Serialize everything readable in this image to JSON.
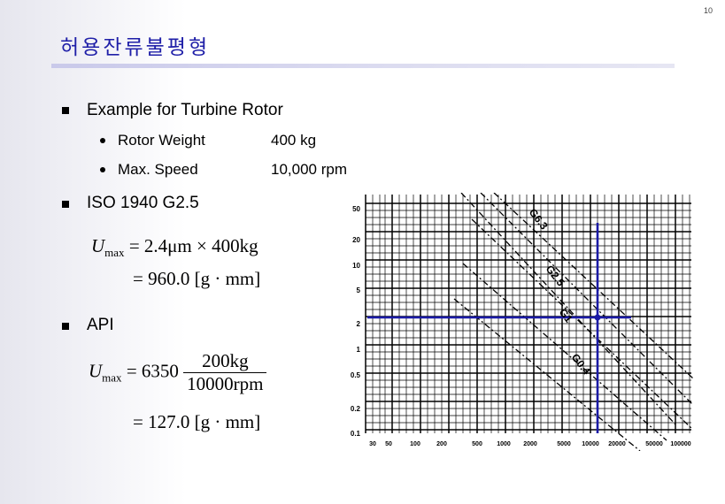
{
  "page_number": "10",
  "title": "허용잔류불평형",
  "bullets": [
    {
      "text": "Example for Turbine Rotor",
      "items": [
        {
          "label": "Rotor Weight",
          "value": "400 kg"
        },
        {
          "label": "Max. Speed",
          "value": "10,000 rpm"
        }
      ]
    },
    {
      "text": "ISO 1940 G2.5"
    },
    {
      "text": "API"
    }
  ],
  "iso_formula": {
    "lhs": "U",
    "sub": "max",
    "rhs": "= 2.4μm × 400kg",
    "result": "= 960.0 [g · mm]"
  },
  "api_formula": {
    "lhs": "U",
    "sub": "max",
    "coef": "= 6350",
    "numerator": "200kg",
    "denominator": "10000rpm",
    "result": "= 127.0 [g · mm]"
  },
  "chart_data": {
    "type": "line",
    "y_ticks": [
      "50",
      "20",
      "10",
      "5",
      "2",
      "1",
      "0.5",
      "0.2",
      "0.1"
    ],
    "x_ticks": [
      "30",
      "50",
      "100",
      "200",
      "500",
      "1000",
      "2000",
      "5000",
      "10000",
      "20000",
      "50000",
      "100000"
    ],
    "grades": [
      "G6.3",
      "G2.5",
      "G1",
      "G0.4"
    ],
    "marker_lines": [
      "G2.5 reading at 10,000 rpm"
    ],
    "colors": {
      "grid": "#000000",
      "marker": "#1a1aa6"
    }
  }
}
